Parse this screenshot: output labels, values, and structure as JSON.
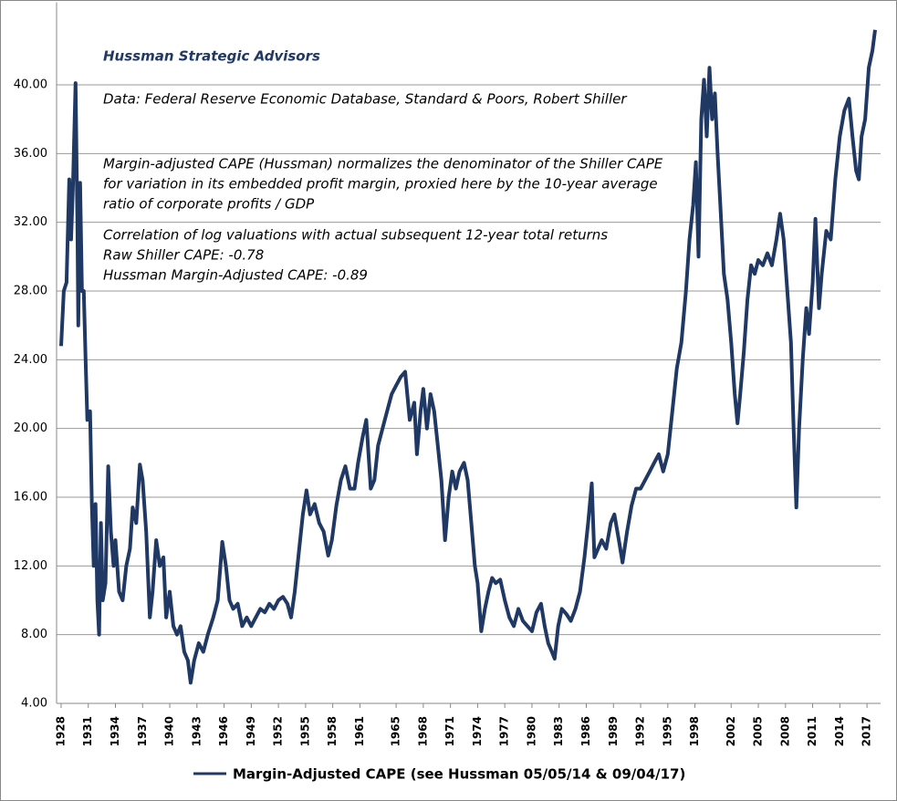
{
  "chart_data": {
    "type": "line",
    "annotations": [
      "Hussman Strategic Advisors",
      "Data: Federal Reserve Economic Database, Standard & Poors, Robert Shiller",
      "Margin-adjusted CAPE (Hussman) normalizes the denominator of the Shiller CAPE",
      "for variation in its embedded profit margin, proxied here by the 10-year average",
      "ratio of corporate profits / GDP",
      "Correlation of log valuations with actual subsequent 12-year total returns",
      "Raw Shiller CAPE: -0.78",
      "Hussman Margin-Adjusted CAPE: -0.89"
    ],
    "x": [
      1928.0,
      1928.3,
      1928.6,
      1928.9,
      1929.1,
      1929.3,
      1929.6,
      1929.8,
      1929.9,
      1930.1,
      1930.3,
      1930.5,
      1930.7,
      1930.9,
      1931.2,
      1931.4,
      1931.6,
      1931.8,
      1932.0,
      1932.2,
      1932.4,
      1932.6,
      1932.9,
      1933.2,
      1933.5,
      1933.8,
      1934.0,
      1934.4,
      1934.8,
      1935.2,
      1935.6,
      1935.9,
      1936.3,
      1936.7,
      1937.0,
      1937.4,
      1937.8,
      1938.1,
      1938.5,
      1938.9,
      1939.3,
      1939.6,
      1940.0,
      1940.4,
      1940.8,
      1941.2,
      1941.6,
      1942.0,
      1942.3,
      1942.7,
      1943.2,
      1943.7,
      1944.2,
      1944.8,
      1945.3,
      1945.8,
      1946.2,
      1946.6,
      1947.0,
      1947.5,
      1948.0,
      1948.5,
      1949.0,
      1949.5,
      1950.0,
      1950.5,
      1951.0,
      1951.5,
      1952.0,
      1952.5,
      1953.0,
      1953.4,
      1953.8,
      1954.3,
      1954.7,
      1955.1,
      1955.5,
      1956.0,
      1956.5,
      1957.0,
      1957.5,
      1957.9,
      1958.4,
      1958.9,
      1959.4,
      1959.9,
      1960.4,
      1960.8,
      1961.3,
      1961.7,
      1962.2,
      1962.6,
      1963.0,
      1963.5,
      1964.0,
      1964.5,
      1965.0,
      1965.5,
      1966.0,
      1966.5,
      1967.0,
      1967.3,
      1967.7,
      1968.0,
      1968.4,
      1968.8,
      1969.2,
      1969.6,
      1970.0,
      1970.4,
      1970.8,
      1971.2,
      1971.6,
      1972.0,
      1972.5,
      1972.9,
      1973.3,
      1973.7,
      1974.0,
      1974.4,
      1974.8,
      1975.2,
      1975.6,
      1976.0,
      1976.5,
      1977.0,
      1977.5,
      1978.0,
      1978.5,
      1979.0,
      1979.5,
      1980.0,
      1980.5,
      1981.0,
      1981.4,
      1981.8,
      1982.2,
      1982.5,
      1982.9,
      1983.3,
      1983.8,
      1984.3,
      1984.8,
      1985.3,
      1985.8,
      1986.2,
      1986.6,
      1986.9,
      1987.3,
      1987.7,
      1988.2,
      1988.7,
      1989.1,
      1989.6,
      1990.0,
      1990.5,
      1991.0,
      1991.5,
      1992.0,
      1992.5,
      1993.0,
      1993.5,
      1994.0,
      1994.5,
      1995.0,
      1995.5,
      1996.0,
      1996.5,
      1997.0,
      1997.4,
      1997.8,
      1998.1,
      1998.4,
      1998.7,
      1999.0,
      1999.3,
      1999.6,
      1999.9,
      2000.2,
      2000.5,
      2000.8,
      2001.2,
      2001.6,
      2002.0,
      2002.4,
      2002.7,
      2003.0,
      2003.4,
      2003.8,
      2004.2,
      2004.6,
      2005.0,
      2005.5,
      2006.0,
      2006.5,
      2007.0,
      2007.4,
      2007.8,
      2008.2,
      2008.6,
      2008.9,
      2009.2,
      2009.5,
      2009.9,
      2010.3,
      2010.6,
      2011.0,
      2011.3,
      2011.7,
      2012.0,
      2012.5,
      2013.0,
      2013.5,
      2014.0,
      2014.5,
      2015.0,
      2015.4,
      2015.8,
      2016.1,
      2016.4,
      2016.8,
      2017.2,
      2017.6,
      2017.9
    ],
    "series": [
      {
        "name": "Margin-Adjusted CAPE (see Hussman 05/05/14 & 09/04/17)",
        "color": "#1f3864",
        "values": [
          24.8,
          28,
          28.5,
          34.5,
          31,
          34,
          40.1,
          32,
          26,
          34.3,
          28,
          28,
          24,
          20.5,
          21,
          15.5,
          12,
          15.6,
          10,
          8.0,
          14.5,
          10,
          11,
          17.8,
          14,
          12,
          13.5,
          10.5,
          10,
          12,
          13,
          15.4,
          14.5,
          17.9,
          17,
          14,
          9,
          10.5,
          13.5,
          12,
          12.5,
          9,
          10.5,
          8.5,
          8.0,
          8.5,
          7,
          6.5,
          5.2,
          6.5,
          7.5,
          7.0,
          8,
          9,
          10,
          13.4,
          12,
          10,
          9.5,
          9.8,
          8.5,
          9,
          8.5,
          9,
          9.5,
          9.3,
          9.8,
          9.5,
          10,
          10.2,
          9.8,
          9.0,
          10.5,
          13,
          15,
          16.4,
          15,
          15.6,
          14.5,
          14,
          12.6,
          13.5,
          15.5,
          17,
          17.8,
          16.5,
          16.5,
          18,
          19.5,
          20.5,
          16.5,
          17,
          19,
          20,
          21,
          22,
          22.5,
          23,
          23.3,
          20.5,
          21.5,
          18.5,
          21,
          22.3,
          20,
          22,
          21,
          19,
          17,
          13.5,
          16,
          17.5,
          16.5,
          17.5,
          18,
          17,
          14.5,
          12,
          11,
          8.2,
          9.5,
          10.5,
          11.3,
          11,
          11.2,
          10,
          9,
          8.5,
          9.5,
          8.8,
          8.5,
          8.2,
          9.3,
          9.8,
          8.5,
          7.5,
          7.0,
          6.6,
          8.5,
          9.5,
          9.2,
          8.8,
          9.5,
          10.5,
          12.5,
          14.5,
          16.8,
          12.5,
          13,
          13.5,
          13,
          14.5,
          15,
          13.5,
          12.2,
          14,
          15.5,
          16.5,
          16.5,
          17,
          17.5,
          18,
          18.5,
          17.5,
          18.5,
          21,
          23.5,
          25,
          28,
          31,
          33,
          35.5,
          30,
          38,
          40.3,
          37,
          41,
          38,
          39.5,
          36,
          33,
          29,
          27.5,
          25,
          22,
          20.3,
          22,
          24.5,
          27.5,
          29.5,
          29,
          29.8,
          29.5,
          30.2,
          29.5,
          31,
          32.5,
          31,
          28,
          25,
          20,
          15.4,
          20,
          24,
          27,
          25.5,
          28.5,
          32.2,
          27,
          29,
          31.5,
          31,
          34.5,
          37,
          38.5,
          39.2,
          37,
          35,
          34.5,
          37,
          38,
          41,
          42,
          43.2
        ]
      }
    ],
    "xlim": [
      1927.5,
      2018.5
    ],
    "xticks": [
      1928,
      1931,
      1934,
      1937,
      1940,
      1943,
      1946,
      1949,
      1952,
      1955,
      1958,
      1961,
      1965,
      1968,
      1971,
      1974,
      1977,
      1980,
      1983,
      1986,
      1989,
      1992,
      1995,
      1998,
      2002,
      2005,
      2008,
      2011,
      2014,
      2017
    ],
    "ylim": [
      4,
      44.8
    ],
    "yticks": [
      {
        "value": 4,
        "label": "4.00"
      },
      {
        "value": 8,
        "label": "8.00"
      },
      {
        "value": 12,
        "label": "12.00"
      },
      {
        "value": 16,
        "label": "16.00"
      },
      {
        "value": 20,
        "label": "20.00"
      },
      {
        "value": 24,
        "label": "24.00"
      },
      {
        "value": 28,
        "label": "28.00"
      },
      {
        "value": 32,
        "label": "32.00"
      },
      {
        "value": 36,
        "label": "36.00"
      },
      {
        "value": 40,
        "label": "40.00"
      }
    ],
    "grid": true
  }
}
